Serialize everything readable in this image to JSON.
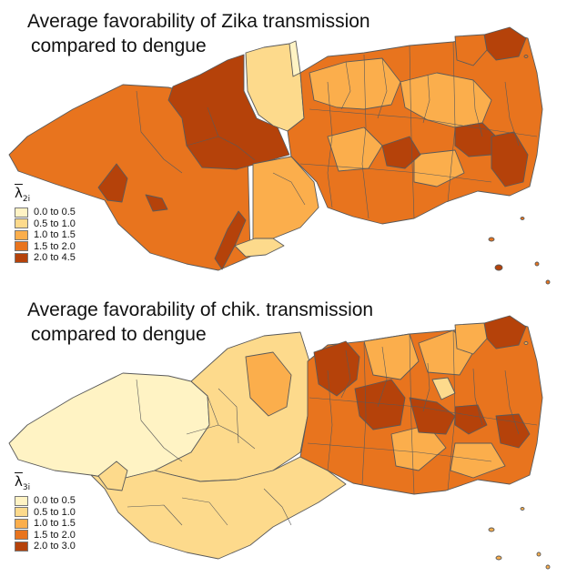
{
  "panels": [
    {
      "id": "zika",
      "title_line1": "Average favorability of Zika transmission",
      "title_line2": "compared to dengue",
      "legend_symbol": "λ",
      "legend_subscript": "2i",
      "legend": [
        {
          "label": "0.0 to 0.5",
          "color": "#FFF3C4"
        },
        {
          "label": "0.5 to 1.0",
          "color": "#FDDA8C"
        },
        {
          "label": "1.0 to 1.5",
          "color": "#FBAE4C"
        },
        {
          "label": "1.5 to 2.0",
          "color": "#E8741E"
        },
        {
          "label": "2.0 to 4.5",
          "color": "#B5420A"
        }
      ]
    },
    {
      "id": "chik",
      "title_line1": "Average favorability of chik. transmission",
      "title_line2": "compared to dengue",
      "legend_symbol": "λ",
      "legend_subscript": "3i",
      "legend": [
        {
          "label": "0.0 to 0.5",
          "color": "#FFF3C4"
        },
        {
          "label": "0.5 to 1.0",
          "color": "#FDDA8C"
        },
        {
          "label": "1.0 to 1.5",
          "color": "#FBAE4C"
        },
        {
          "label": "1.5 to 2.0",
          "color": "#E8741E"
        },
        {
          "label": "2.0 to 3.0",
          "color": "#B5420A"
        }
      ]
    }
  ],
  "map_colors": {
    "c1": "#FFF3C4",
    "c2": "#FDDA8C",
    "c3": "#FBAE4C",
    "c4": "#E8741E",
    "c5": "#B5420A",
    "border": "#5a5a5a"
  }
}
